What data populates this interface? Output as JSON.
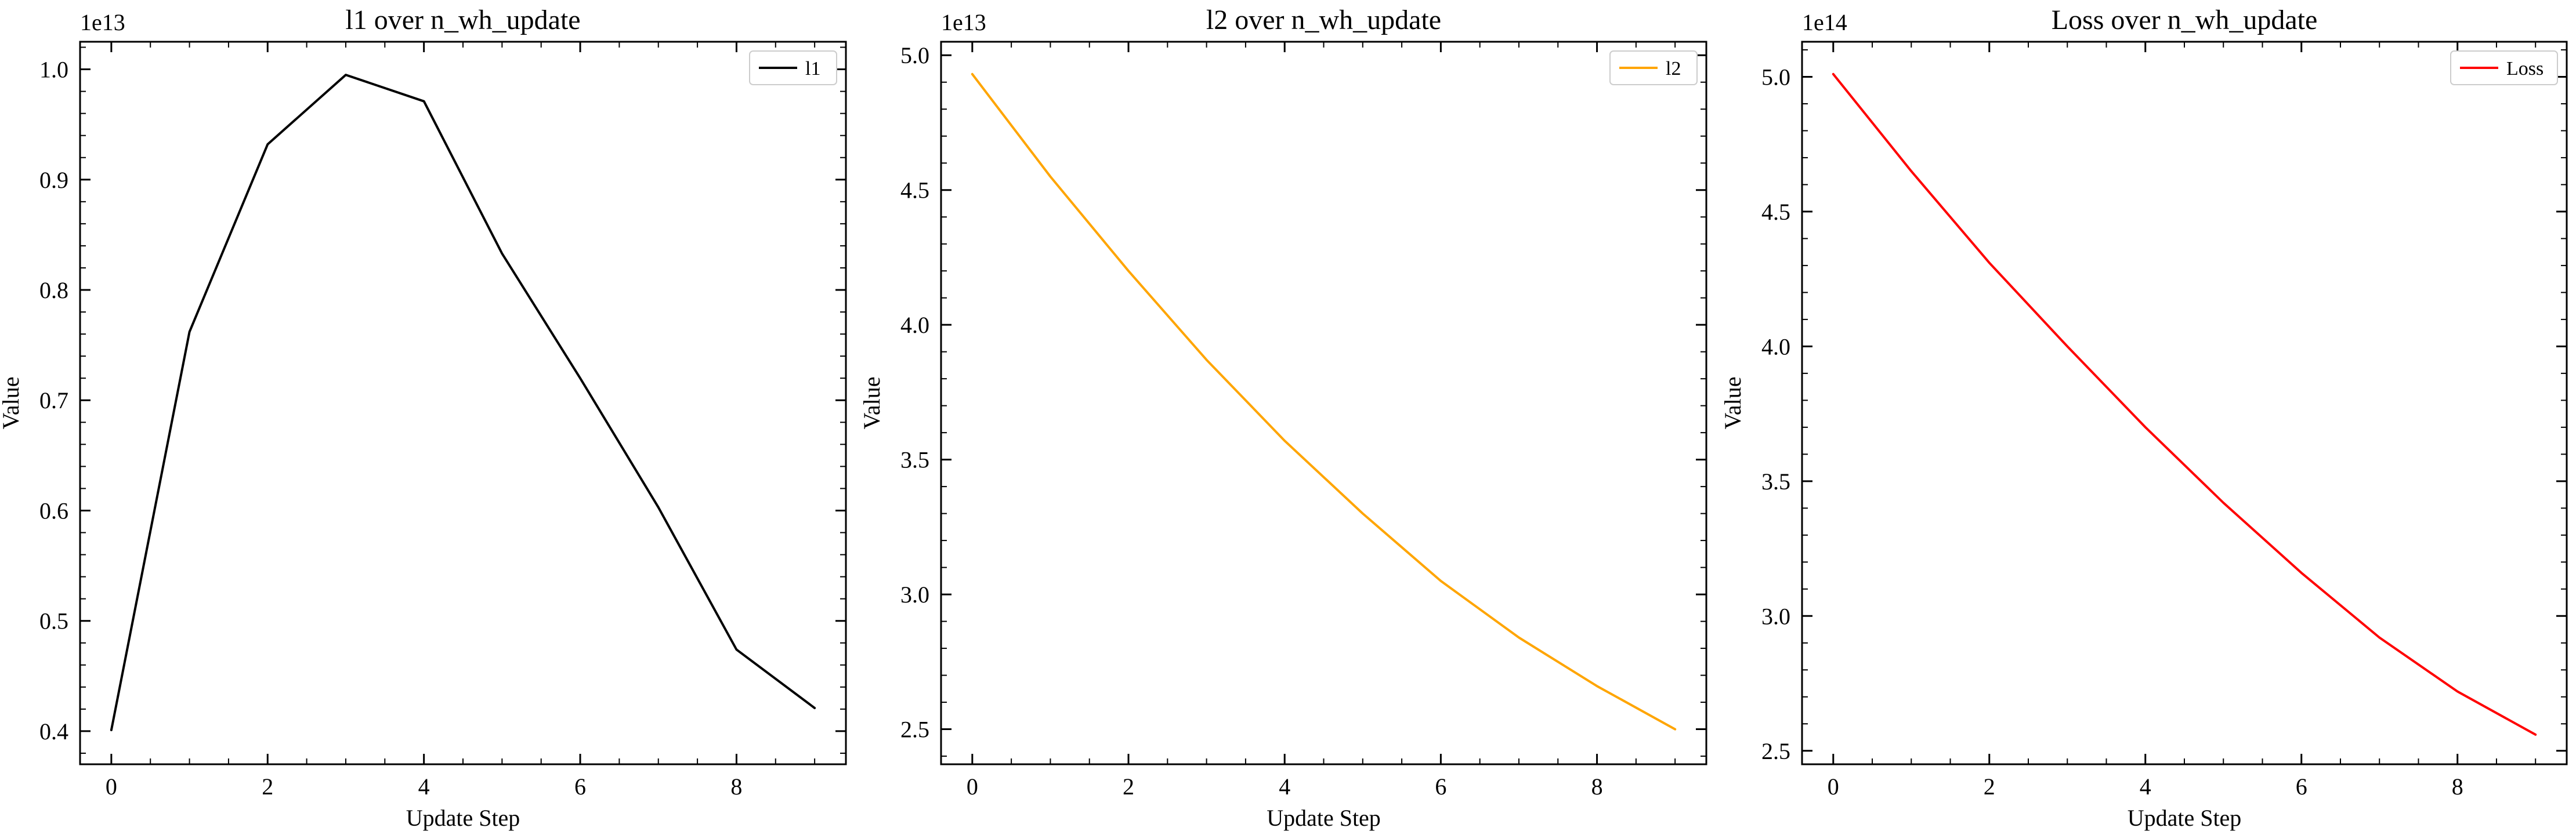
{
  "chart_data": [
    {
      "type": "line",
      "title": "l1 over n_wh_update",
      "xlabel": "Update Step",
      "ylabel": "Value",
      "offset_label": "1e13",
      "scale": 10000000000000.0,
      "x": [
        0,
        1,
        2,
        3,
        4,
        5,
        6,
        7,
        8,
        9
      ],
      "xlim": [
        -0.4,
        9.4
      ],
      "ylim": [
        0.37,
        1.025
      ],
      "xticks": [
        0,
        2,
        4,
        6,
        8
      ],
      "yticks": [
        0.4,
        0.5,
        0.6,
        0.7,
        0.8,
        0.9,
        1.0
      ],
      "ytick_labels": [
        "0.4",
        "0.5",
        "0.6",
        "0.7",
        "0.8",
        "0.9",
        "1.0"
      ],
      "grid": false,
      "legend_position": "top-right",
      "series": [
        {
          "name": "l1",
          "color": "#000000",
          "values": [
            0.401,
            0.762,
            0.932,
            0.995,
            0.971,
            0.833,
            0.72,
            0.603,
            0.474,
            0.421
          ]
        }
      ]
    },
    {
      "type": "line",
      "title": "l2 over n_wh_update",
      "xlabel": "Update Step",
      "ylabel": "Value",
      "offset_label": "1e13",
      "scale": 10000000000000.0,
      "x": [
        0,
        1,
        2,
        3,
        4,
        5,
        6,
        7,
        8,
        9
      ],
      "xlim": [
        -0.4,
        9.4
      ],
      "ylim": [
        2.37,
        5.05
      ],
      "xticks": [
        0,
        2,
        4,
        6,
        8
      ],
      "yticks": [
        2.5,
        3.0,
        3.5,
        4.0,
        4.5,
        5.0
      ],
      "ytick_labels": [
        "2.5",
        "3.0",
        "3.5",
        "4.0",
        "4.5",
        "5.0"
      ],
      "grid": false,
      "legend_position": "top-right",
      "series": [
        {
          "name": "l2",
          "color": "#FFA500",
          "values": [
            4.93,
            4.55,
            4.2,
            3.87,
            3.57,
            3.3,
            3.05,
            2.84,
            2.66,
            2.5
          ]
        }
      ]
    },
    {
      "type": "line",
      "title": "Loss over n_wh_update",
      "xlabel": "Update Step",
      "ylabel": "Value",
      "offset_label": "1e14",
      "scale": 100000000000000.0,
      "x": [
        0,
        1,
        2,
        3,
        4,
        5,
        6,
        7,
        8,
        9
      ],
      "xlim": [
        -0.4,
        9.4
      ],
      "ylim": [
        2.45,
        5.13
      ],
      "xticks": [
        0,
        2,
        4,
        6,
        8
      ],
      "yticks": [
        2.5,
        3.0,
        3.5,
        4.0,
        4.5,
        5.0
      ],
      "ytick_labels": [
        "2.5",
        "3.0",
        "3.5",
        "4.0",
        "4.5",
        "5.0"
      ],
      "grid": false,
      "legend_position": "top-right",
      "series": [
        {
          "name": "Loss",
          "color": "#FF0000",
          "values": [
            5.01,
            4.65,
            4.31,
            4.0,
            3.7,
            3.42,
            3.16,
            2.92,
            2.72,
            2.56
          ]
        }
      ]
    }
  ]
}
